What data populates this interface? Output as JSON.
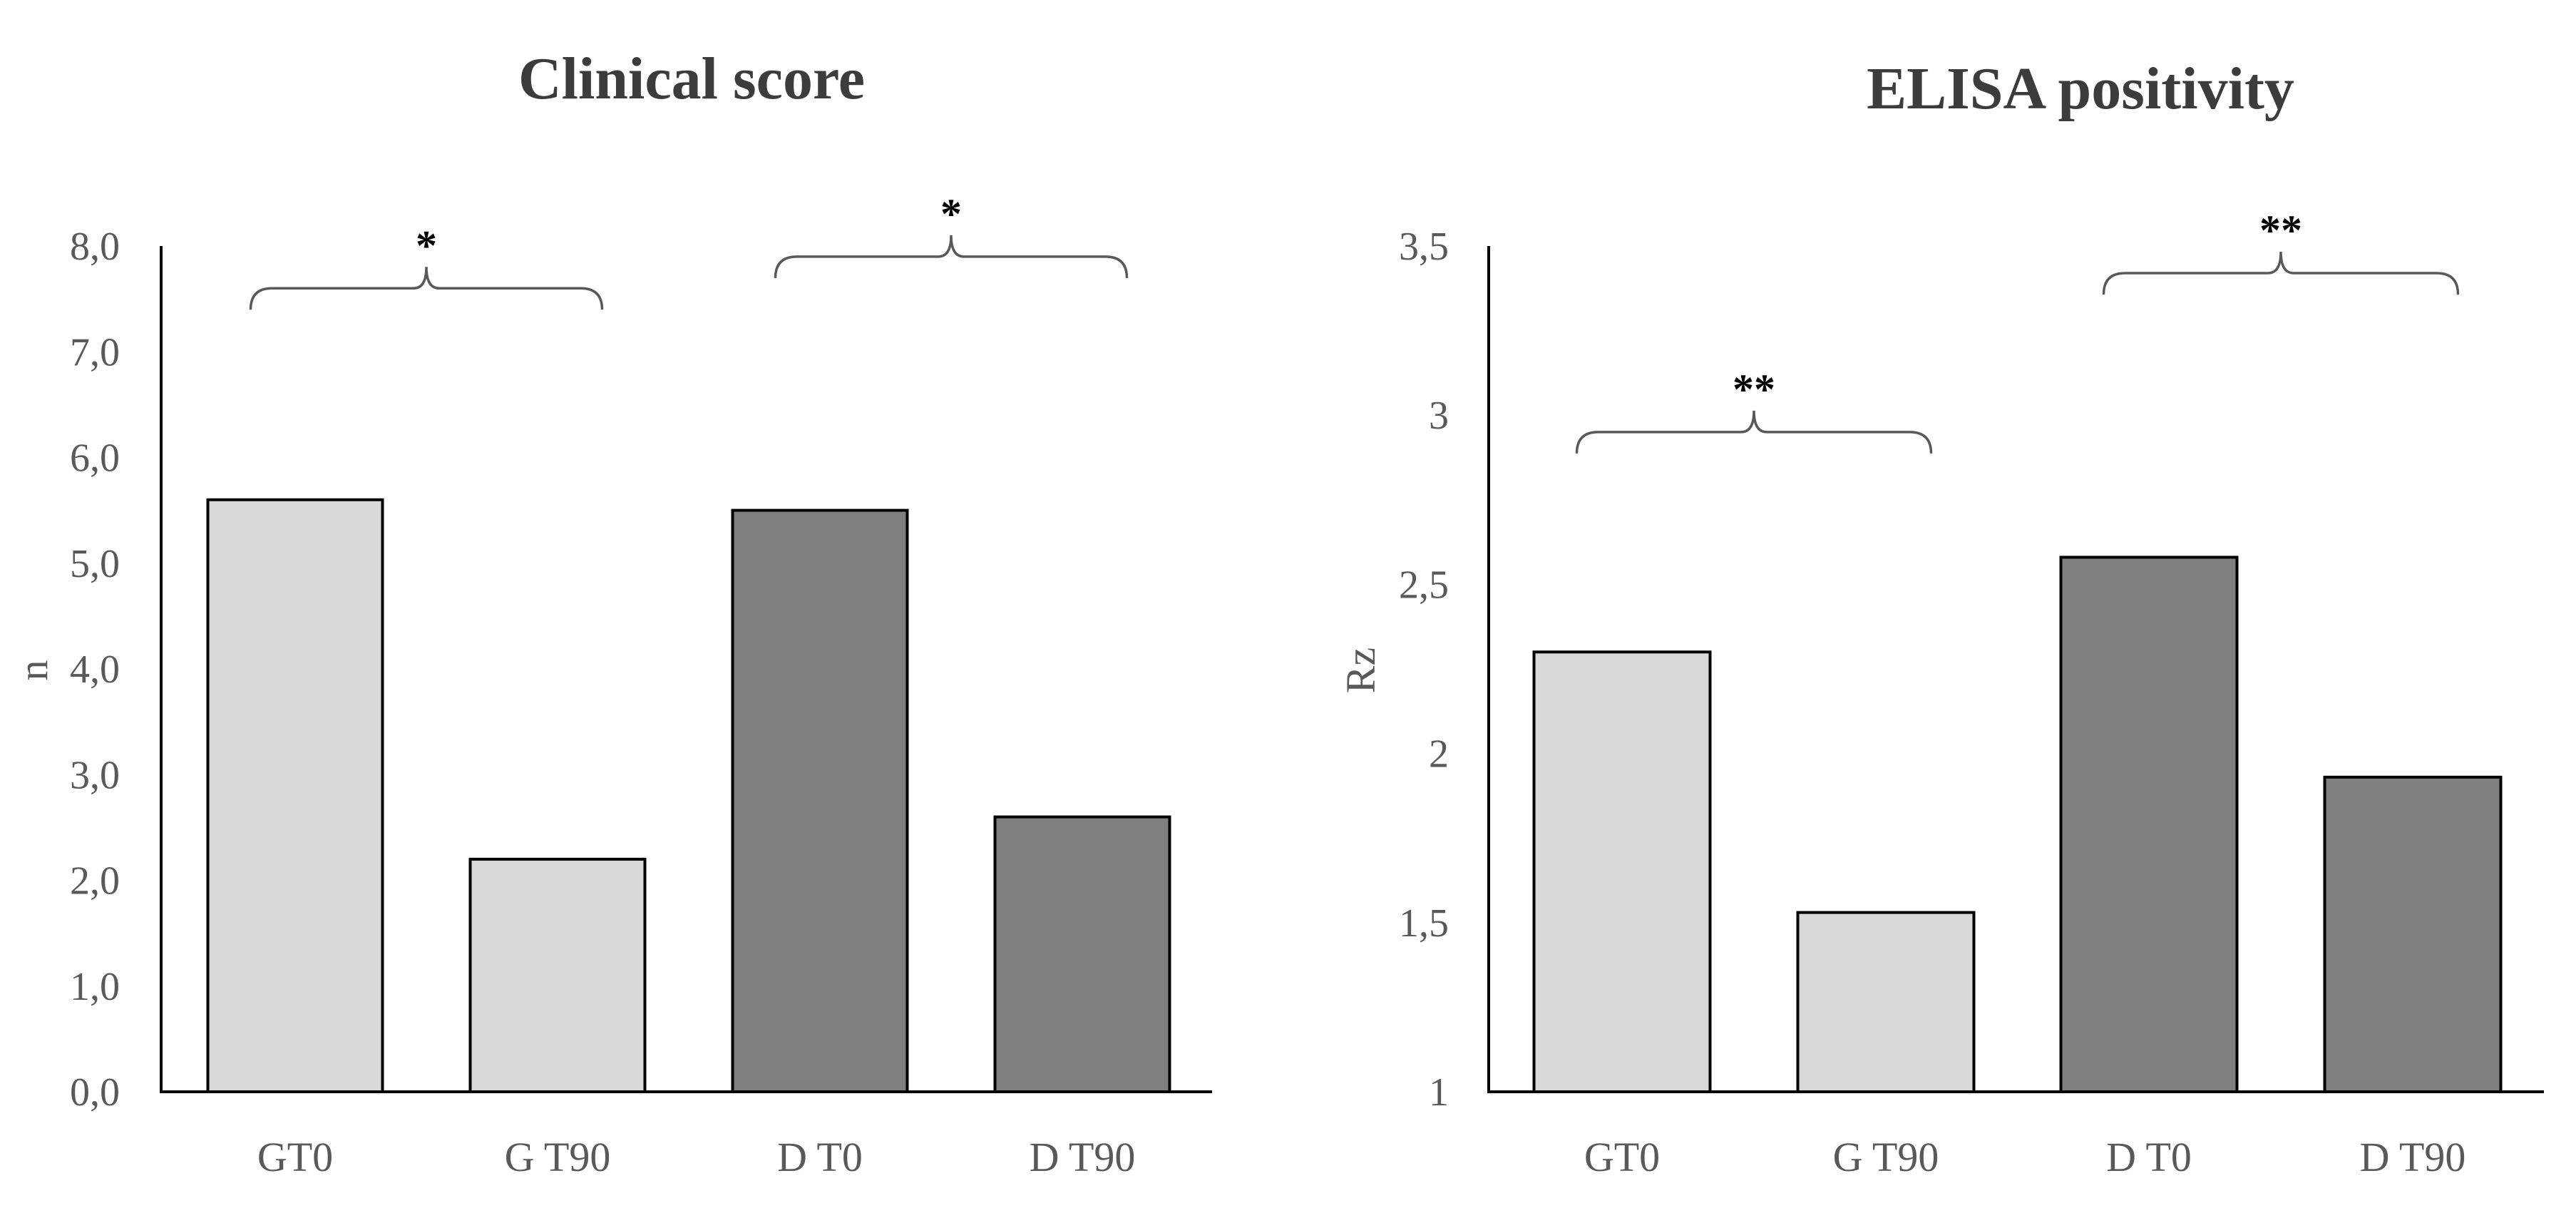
{
  "colors": {
    "bar_light": "#d9d9d9",
    "bar_dark": "#7f7f7f",
    "bar_stroke": "#000000",
    "axis": "#000000",
    "bracket": "#595959"
  },
  "chart_data": [
    {
      "type": "bar",
      "title": "Clinical score",
      "xlabel": "",
      "ylabel": "n",
      "ylim": [
        0,
        8
      ],
      "yticks": [
        "0,0",
        "1,0",
        "2,0",
        "3,0",
        "4,0",
        "5,0",
        "6,0",
        "7,0",
        "8,0"
      ],
      "categories": [
        "GT0",
        "G T90",
        "D T0",
        "D T90"
      ],
      "values": [
        5.6,
        2.2,
        5.5,
        2.6
      ],
      "bar_colors": [
        "light",
        "light",
        "dark",
        "dark"
      ],
      "significance": [
        {
          "from": 0,
          "to": 1,
          "label": "*",
          "level": 7.6
        },
        {
          "from": 2,
          "to": 3,
          "label": "*",
          "level": 7.9
        }
      ]
    },
    {
      "type": "bar",
      "title": "ELISA positivity",
      "xlabel": "",
      "ylabel": "Rz",
      "ylim": [
        1,
        3.5
      ],
      "yticks": [
        "1",
        "1,5",
        "2",
        "2,5",
        "3",
        "3,5"
      ],
      "categories": [
        "GT0",
        "G T90",
        "D T0",
        "D T90"
      ],
      "values": [
        2.3,
        1.53,
        2.58,
        1.93
      ],
      "bar_colors": [
        "light",
        "light",
        "dark",
        "dark"
      ],
      "significance": [
        {
          "from": 0,
          "to": 1,
          "label": "**",
          "level": 2.95
        },
        {
          "from": 2,
          "to": 3,
          "label": "**",
          "level": 3.42
        }
      ]
    }
  ]
}
